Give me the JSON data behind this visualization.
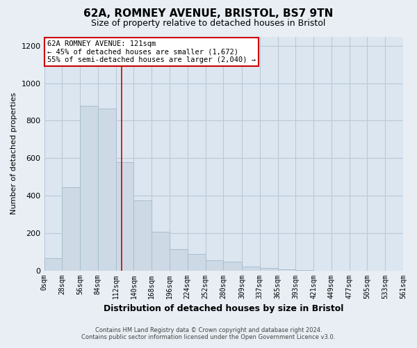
{
  "title": "62A, ROMNEY AVENUE, BRISTOL, BS7 9TN",
  "subtitle": "Size of property relative to detached houses in Bristol",
  "xlabel": "Distribution of detached houses by size in Bristol",
  "ylabel": "Number of detached properties",
  "bar_color": "#cdd9e5",
  "bar_edge_color": "#a8bfcf",
  "vline_color": "#cc0000",
  "vline_x": 121,
  "annotation_line1": "62A ROMNEY AVENUE: 121sqm",
  "annotation_line2": "← 45% of detached houses are smaller (1,672)",
  "annotation_line3": "55% of semi-detached houses are larger (2,040) →",
  "annotation_box_color": "white",
  "annotation_box_edge_color": "#cc0000",
  "footer_line1": "Contains HM Land Registry data © Crown copyright and database right 2024.",
  "footer_line2": "Contains public sector information licensed under the Open Government Licence v3.0.",
  "bin_edges": [
    0,
    28,
    56,
    84,
    112,
    140,
    168,
    196,
    224,
    252,
    280,
    309,
    337,
    365,
    393,
    421,
    449,
    477,
    505,
    533,
    561
  ],
  "bin_labels": [
    "0sqm",
    "28sqm",
    "56sqm",
    "84sqm",
    "112sqm",
    "140sqm",
    "168sqm",
    "196sqm",
    "224sqm",
    "252sqm",
    "280sqm",
    "309sqm",
    "337sqm",
    "365sqm",
    "393sqm",
    "421sqm",
    "449sqm",
    "477sqm",
    "505sqm",
    "533sqm",
    "561sqm"
  ],
  "counts": [
    65,
    445,
    880,
    865,
    580,
    375,
    205,
    115,
    88,
    55,
    45,
    20,
    15,
    5,
    3,
    0,
    0,
    0,
    0,
    0
  ],
  "ylim": [
    0,
    1250
  ],
  "yticks": [
    0,
    200,
    400,
    600,
    800,
    1000,
    1200
  ],
  "background_color": "#e8eef4",
  "plot_bg_color": "#dce6f0",
  "grid_color": "#b8c8d8"
}
